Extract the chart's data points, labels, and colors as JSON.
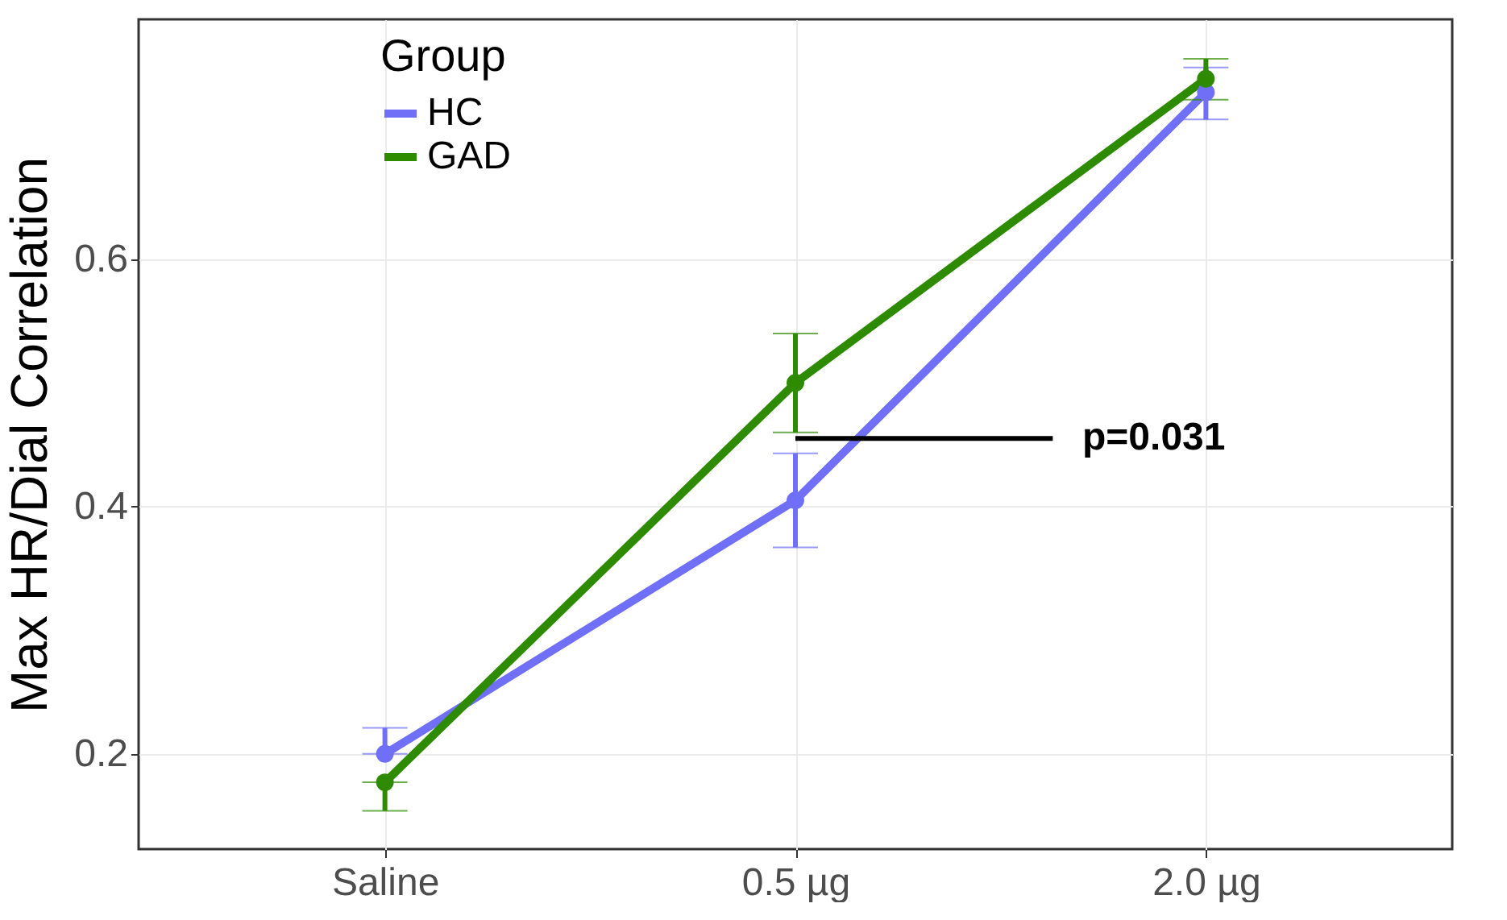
{
  "chart_data": {
    "type": "line",
    "ylabel": "Max HR/Dial Correlation",
    "legend_title": "Group",
    "categories": [
      "Saline",
      "0.5 µg",
      "2.0 µg"
    ],
    "series": [
      {
        "name": "HC",
        "color": "#6f6ff7",
        "values": [
          0.2,
          0.405,
          0.735
        ],
        "errors": [
          [
            0.2,
            0.221
          ],
          [
            0.367,
            0.443
          ],
          [
            0.713,
            0.755
          ]
        ]
      },
      {
        "name": "GAD",
        "color": "#2e8b00",
        "values": [
          0.177,
          0.5,
          0.746
        ],
        "errors": [
          [
            0.154,
            0.177
          ],
          [
            0.46,
            0.54
          ],
          [
            0.729,
            0.762
          ]
        ]
      }
    ],
    "ylim": [
      0.123,
      0.794
    ],
    "yticks": [
      0.2,
      0.4,
      0.6
    ],
    "grid": true,
    "legend": "top left",
    "marker": "circle",
    "line_style": "solid",
    "annotations": [
      {
        "text": "p=0.031",
        "x": "0.5 µg",
        "y": 0.455
      }
    ]
  }
}
